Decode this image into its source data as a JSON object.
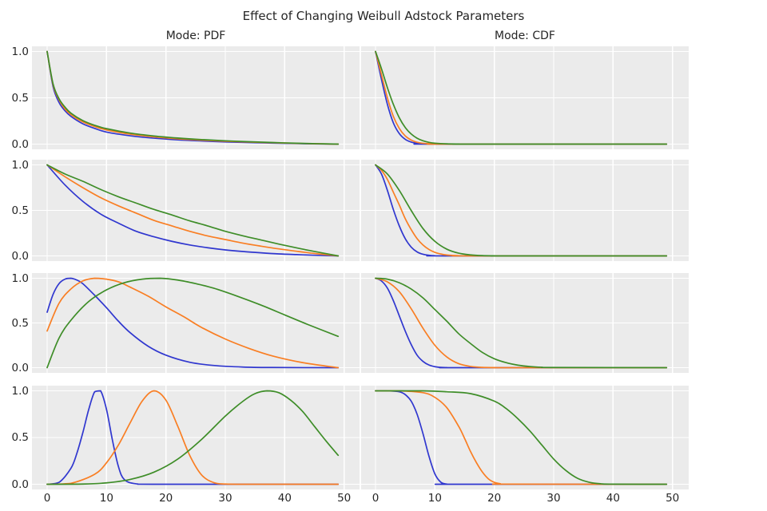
{
  "title": "Effect of Changing Weibull Adstock Parameters",
  "columns": [
    {
      "label": "Mode: PDF"
    },
    {
      "label": "Mode: CDF"
    }
  ],
  "colors": {
    "series_blue": "#3037cf",
    "series_orange": "#f97e23",
    "series_green": "#3e8d28",
    "panel_background": "#ebebeb",
    "gridline": "#ffffff",
    "text": "#262626",
    "figure_background": "#ffffff"
  },
  "axes": {
    "x_tick_values": [
      0,
      10,
      20,
      30,
      40,
      50
    ],
    "x_tick_labels": [
      "0",
      "10",
      "20",
      "30",
      "40",
      "50"
    ],
    "y_tick_values": [
      1.0,
      0.5,
      0.0
    ],
    "y_tick_labels": [
      "1.0",
      "0.5",
      "0.0"
    ]
  },
  "chart_data": {
    "type": "line",
    "title": "Effect of Changing Weibull Adstock Parameters",
    "grid": true,
    "legend_position": "none",
    "xlim": [
      0,
      50
    ],
    "ylim": [
      0,
      1.0
    ],
    "columns": [
      "Mode: PDF",
      "Mode: CDF"
    ],
    "panels": [
      {
        "row": 1,
        "col": 1,
        "mode": "PDF",
        "series": [
          {
            "name": "blue",
            "x": [
              0,
              1,
              2,
              3,
              4,
              6,
              8,
              10,
              14,
              18,
              22,
              26,
              30,
              34,
              38,
              42,
              46,
              49
            ],
            "y": [
              1,
              0.62,
              0.45,
              0.36,
              0.3,
              0.22,
              0.17,
              0.13,
              0.09,
              0.064,
              0.046,
              0.034,
              0.024,
              0.017,
              0.011,
              0.006,
              0.002,
              0
            ]
          },
          {
            "name": "orange",
            "x": [
              0,
              1,
              2,
              3,
              4,
              6,
              8,
              10,
              14,
              18,
              22,
              26,
              30,
              34,
              38,
              42,
              46,
              49
            ],
            "y": [
              1,
              0.64,
              0.48,
              0.38,
              0.32,
              0.24,
              0.19,
              0.153,
              0.107,
              0.078,
              0.057,
              0.043,
              0.031,
              0.022,
              0.015,
              0.008,
              0.003,
              0
            ]
          },
          {
            "name": "green",
            "x": [
              0,
              1,
              2,
              3,
              4,
              6,
              8,
              10,
              14,
              18,
              22,
              26,
              30,
              34,
              38,
              42,
              46,
              49
            ],
            "y": [
              1,
              0.65,
              0.49,
              0.4,
              0.335,
              0.254,
              0.203,
              0.167,
              0.119,
              0.088,
              0.066,
              0.049,
              0.036,
              0.026,
              0.017,
              0.01,
              0.004,
              0
            ]
          }
        ]
      },
      {
        "row": 1,
        "col": 2,
        "mode": "CDF",
        "series": [
          {
            "name": "blue",
            "x": [
              0,
              1,
              2,
              3,
              4,
              5,
              6,
              7,
              8,
              10,
              49
            ],
            "y": [
              1,
              0.7,
              0.43,
              0.23,
              0.114,
              0.052,
              0.022,
              0.009,
              0.003,
              0,
              0
            ]
          },
          {
            "name": "orange",
            "x": [
              0,
              1,
              2,
              3,
              4,
              5,
              6,
              7,
              8,
              10,
              12,
              49
            ],
            "y": [
              1,
              0.75,
              0.5,
              0.3,
              0.17,
              0.089,
              0.044,
              0.02,
              0.009,
              0.002,
              0,
              0
            ]
          },
          {
            "name": "green",
            "x": [
              0,
              1,
              2,
              3,
              4,
              5,
              6,
              7,
              8,
              9,
              10,
              12,
              14,
              16,
              49
            ],
            "y": [
              1,
              0.815,
              0.61,
              0.43,
              0.285,
              0.18,
              0.11,
              0.064,
              0.036,
              0.019,
              0.01,
              0.003,
              0.001,
              0,
              0
            ]
          }
        ]
      },
      {
        "row": 2,
        "col": 1,
        "mode": "PDF",
        "series": [
          {
            "name": "blue",
            "x": [
              0,
              3,
              6,
              9,
              12,
              15,
              18,
              21,
              24,
              27,
              30,
              33,
              36,
              39,
              42,
              45,
              49
            ],
            "y": [
              1,
              0.78,
              0.6,
              0.46,
              0.36,
              0.27,
              0.21,
              0.16,
              0.12,
              0.09,
              0.066,
              0.048,
              0.034,
              0.022,
              0.014,
              0.007,
              0
            ]
          },
          {
            "name": "orange",
            "x": [
              0,
              3,
              6,
              9,
              12,
              15,
              18,
              21,
              24,
              27,
              30,
              33,
              36,
              39,
              42,
              45,
              49
            ],
            "y": [
              1,
              0.87,
              0.75,
              0.64,
              0.55,
              0.47,
              0.39,
              0.33,
              0.27,
              0.22,
              0.18,
              0.14,
              0.107,
              0.077,
              0.051,
              0.027,
              0
            ]
          },
          {
            "name": "green",
            "x": [
              0,
              3,
              6,
              9,
              12,
              15,
              18,
              21,
              24,
              27,
              30,
              33,
              36,
              39,
              42,
              45,
              49
            ],
            "y": [
              1,
              0.9,
              0.82,
              0.73,
              0.65,
              0.58,
              0.51,
              0.45,
              0.385,
              0.33,
              0.27,
              0.22,
              0.175,
              0.13,
              0.088,
              0.049,
              0
            ]
          }
        ]
      },
      {
        "row": 2,
        "col": 2,
        "mode": "CDF",
        "series": [
          {
            "name": "blue",
            "x": [
              0,
              1,
              2,
              3,
              4,
              5,
              6,
              7,
              8,
              9,
              10,
              12,
              49
            ],
            "y": [
              1,
              0.9,
              0.72,
              0.51,
              0.33,
              0.19,
              0.097,
              0.044,
              0.018,
              0.007,
              0.002,
              0,
              0
            ]
          },
          {
            "name": "orange",
            "x": [
              0,
              1,
              2,
              3,
              4,
              5,
              6,
              7,
              8,
              9,
              10,
              11,
              12,
              13,
              14,
              16,
              49
            ],
            "y": [
              1,
              0.94,
              0.84,
              0.7,
              0.56,
              0.41,
              0.29,
              0.19,
              0.12,
              0.071,
              0.039,
              0.021,
              0.01,
              0.005,
              0.002,
              0,
              0
            ]
          },
          {
            "name": "green",
            "x": [
              0,
              2,
              4,
              6,
              8,
              10,
              12,
              14,
              16,
              18,
              20,
              22,
              49
            ],
            "y": [
              1,
              0.9,
              0.72,
              0.5,
              0.3,
              0.16,
              0.074,
              0.03,
              0.011,
              0.003,
              0.001,
              0,
              0
            ]
          }
        ]
      },
      {
        "row": 3,
        "col": 1,
        "mode": "PDF",
        "series": [
          {
            "name": "blue",
            "x": [
              0,
              1,
              2,
              3,
              4,
              5,
              6,
              8,
              10,
              12,
              14,
              17,
              20,
              24,
              28,
              33,
              38,
              49
            ],
            "y": [
              0.62,
              0.82,
              0.94,
              0.99,
              1,
              0.98,
              0.94,
              0.81,
              0.67,
              0.52,
              0.39,
              0.24,
              0.14,
              0.061,
              0.025,
              0.007,
              0.002,
              0
            ]
          },
          {
            "name": "orange",
            "x": [
              0,
              2,
              4,
              6,
              8,
              10,
              12,
              14,
              17,
              20,
              23,
              26,
              30,
              34,
              38,
              43,
              49
            ],
            "y": [
              0.41,
              0.72,
              0.88,
              0.97,
              1,
              0.99,
              0.96,
              0.9,
              0.8,
              0.68,
              0.57,
              0.45,
              0.32,
              0.215,
              0.13,
              0.057,
              0
            ]
          },
          {
            "name": "green",
            "x": [
              0,
              2,
              4,
              7,
              10,
              13,
              16,
              19,
              22,
              25,
              28,
              32,
              36,
              40,
              44,
              49
            ],
            "y": [
              0,
              0.33,
              0.53,
              0.74,
              0.87,
              0.95,
              0.99,
              1,
              0.98,
              0.94,
              0.89,
              0.8,
              0.7,
              0.59,
              0.48,
              0.35
            ]
          }
        ]
      },
      {
        "row": 3,
        "col": 2,
        "mode": "CDF",
        "series": [
          {
            "name": "blue",
            "x": [
              0,
              1,
              2,
              3,
              4,
              5,
              6,
              7,
              8,
              9,
              10,
              11,
              12,
              14,
              49
            ],
            "y": [
              1,
              0.97,
              0.89,
              0.75,
              0.58,
              0.41,
              0.26,
              0.14,
              0.07,
              0.03,
              0.011,
              0.003,
              0.001,
              0,
              0
            ]
          },
          {
            "name": "orange",
            "x": [
              0,
              2,
              4,
              6,
              8,
              10,
              12,
              14,
              16,
              18,
              20,
              22,
              49
            ],
            "y": [
              1,
              0.96,
              0.85,
              0.66,
              0.44,
              0.25,
              0.12,
              0.045,
              0.014,
              0.003,
              0.001,
              0,
              0
            ]
          },
          {
            "name": "green",
            "x": [
              0,
              2,
              4,
              6,
              8,
              10,
              12,
              14,
              16,
              18,
              20,
              22,
              24,
              26,
              28,
              30,
              49
            ],
            "y": [
              1,
              0.99,
              0.95,
              0.88,
              0.78,
              0.65,
              0.52,
              0.38,
              0.27,
              0.17,
              0.1,
              0.056,
              0.028,
              0.013,
              0.005,
              0.002,
              0
            ]
          }
        ]
      },
      {
        "row": 4,
        "col": 1,
        "mode": "PDF",
        "series": [
          {
            "name": "blue",
            "x": [
              0,
              2,
              4,
              5,
              6,
              7,
              8,
              9,
              10,
              11,
              12,
              13,
              15,
              19,
              49
            ],
            "y": [
              0,
              0.02,
              0.17,
              0.33,
              0.55,
              0.8,
              0.99,
              1,
              0.8,
              0.47,
              0.19,
              0.05,
              0.005,
              0,
              0
            ]
          },
          {
            "name": "orange",
            "x": [
              0,
              4,
              8,
              10,
              12,
              14,
              16,
              18,
              20,
              22,
              24,
              26,
              28,
              30,
              34,
              49
            ],
            "y": [
              0,
              0.01,
              0.107,
              0.23,
              0.42,
              0.66,
              0.89,
              1,
              0.9,
              0.62,
              0.31,
              0.1,
              0.019,
              0.002,
              0,
              0
            ]
          },
          {
            "name": "green",
            "x": [
              0,
              6,
              10,
              14,
              18,
              22,
              26,
              30,
              33,
              35,
              37,
              39,
              41,
              43,
              45,
              47,
              49
            ],
            "y": [
              0,
              0.002,
              0.015,
              0.052,
              0.13,
              0.27,
              0.48,
              0.73,
              0.89,
              0.97,
              1,
              0.98,
              0.9,
              0.78,
              0.62,
              0.46,
              0.31
            ]
          }
        ]
      },
      {
        "row": 4,
        "col": 2,
        "mode": "CDF",
        "series": [
          {
            "name": "blue",
            "x": [
              0,
              2,
              4,
              5,
              6,
              7,
              8,
              9,
              10,
              11,
              12,
              13,
              49
            ],
            "y": [
              1,
              1,
              0.99,
              0.96,
              0.89,
              0.75,
              0.54,
              0.3,
              0.11,
              0.022,
              0.002,
              0,
              0
            ]
          },
          {
            "name": "orange",
            "x": [
              0,
              4,
              8,
              10,
              12,
              14,
              15,
              16,
              17,
              18,
              19,
              20,
              21,
              22,
              49
            ],
            "y": [
              1,
              1,
              0.98,
              0.93,
              0.82,
              0.62,
              0.49,
              0.35,
              0.23,
              0.13,
              0.058,
              0.021,
              0.006,
              0.001,
              0
            ]
          },
          {
            "name": "green",
            "x": [
              0,
              8,
              12,
              16,
              20,
              22,
              24,
              26,
              28,
              30,
              32,
              34,
              36,
              38,
              40,
              49
            ],
            "y": [
              1,
              1,
              0.99,
              0.97,
              0.89,
              0.81,
              0.7,
              0.57,
              0.42,
              0.27,
              0.15,
              0.064,
              0.021,
              0.005,
              0.001,
              0
            ]
          }
        ]
      }
    ]
  }
}
